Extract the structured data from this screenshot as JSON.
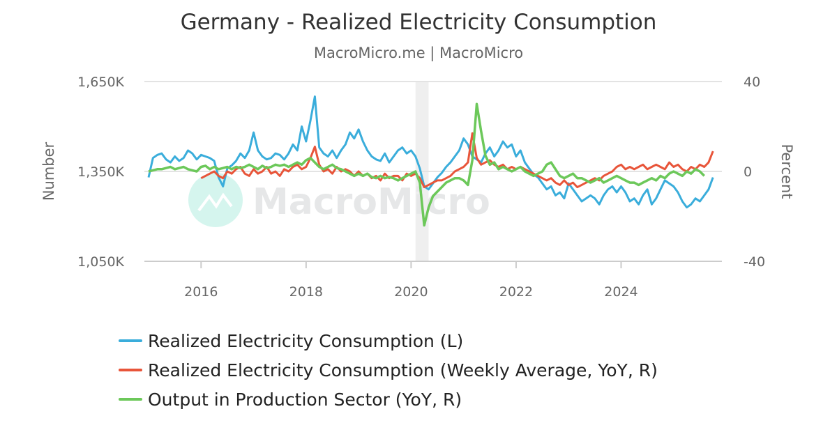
{
  "chart_data": {
    "type": "line",
    "title": "Germany - Realized Electricity Consumption",
    "subtitle": "MacroMicro.me | MacroMicro",
    "watermark": "MacroMicro",
    "ylabel_left": "Number",
    "ylabel_right": "Percent",
    "ylim_left": [
      1050,
      1650
    ],
    "ylim_right": [
      -40,
      40
    ],
    "yticks_left": [
      "1,650K",
      "1,350K",
      "1,050K"
    ],
    "yticks_right": [
      "40",
      "0",
      "-40"
    ],
    "xticks": [
      "2016",
      "2018",
      "2020",
      "2022",
      "2024"
    ],
    "xlim": [
      "2015-01",
      "2025-11"
    ],
    "grid": "horizontal",
    "legend_position": "bottom",
    "shaded_period": [
      "2020-02",
      "2020-04"
    ],
    "colors": {
      "blue": "#3aaddb",
      "red": "#e8553a",
      "green": "#6cc85a",
      "shade": "#efefef"
    },
    "series": [
      {
        "name": "Realized Electricity Consumption (L)",
        "axis": "left",
        "color": "#3aaddb",
        "unit": "K",
        "values": [
          1330,
          1395,
          1405,
          1410,
          1390,
          1380,
          1400,
          1385,
          1395,
          1420,
          1410,
          1390,
          1405,
          1400,
          1395,
          1385,
          1330,
          1300,
          1360,
          1370,
          1385,
          1410,
          1395,
          1420,
          1480,
          1420,
          1400,
          1390,
          1395,
          1410,
          1405,
          1390,
          1410,
          1440,
          1420,
          1500,
          1450,
          1520,
          1600,
          1430,
          1410,
          1400,
          1420,
          1395,
          1420,
          1440,
          1480,
          1460,
          1490,
          1450,
          1420,
          1400,
          1390,
          1385,
          1410,
          1380,
          1400,
          1420,
          1430,
          1410,
          1420,
          1400,
          1360,
          1300,
          1290,
          1310,
          1330,
          1345,
          1365,
          1380,
          1400,
          1420,
          1460,
          1440,
          1400,
          1390,
          1380,
          1410,
          1430,
          1400,
          1420,
          1450,
          1430,
          1440,
          1400,
          1420,
          1380,
          1360,
          1340,
          1330,
          1310,
          1290,
          1300,
          1270,
          1280,
          1260,
          1310,
          1290,
          1270,
          1250,
          1260,
          1270,
          1260,
          1240,
          1270,
          1290,
          1300,
          1280,
          1300,
          1280,
          1250,
          1260,
          1240,
          1270,
          1290,
          1240,
          1260,
          1290,
          1320,
          1310,
          1300,
          1280,
          1250,
          1230,
          1240,
          1260,
          1250,
          1270,
          1290,
          1330
        ]
      },
      {
        "name": "Realized Electricity Consumption (Weekly Average, YoY, R)",
        "axis": "right",
        "color": "#e8553a",
        "unit": "%",
        "values": [
          null,
          null,
          null,
          null,
          null,
          null,
          null,
          null,
          null,
          null,
          null,
          null,
          -3,
          -2,
          -1,
          0,
          -2,
          -3,
          0,
          -1,
          1,
          2,
          -1,
          -2,
          1,
          -1,
          0,
          2,
          -1,
          0,
          -2,
          1,
          0,
          2,
          3,
          1,
          2,
          6,
          11,
          3,
          0,
          1,
          -1,
          2,
          0,
          1,
          0,
          -2,
          0,
          -2,
          -1,
          -3,
          -2,
          -4,
          -1,
          -3,
          -2,
          -2,
          -4,
          -1,
          -2,
          -1,
          -3,
          -7,
          -6,
          -5,
          -4,
          -4,
          -3,
          -2,
          0,
          1,
          2,
          4,
          17,
          6,
          3,
          4,
          5,
          3,
          2,
          3,
          1,
          2,
          1,
          2,
          1,
          0,
          -1,
          -2,
          -3,
          -4,
          -3,
          -5,
          -6,
          -4,
          -6,
          -5,
          -7,
          -6,
          -5,
          -4,
          -3,
          -4,
          -2,
          -1,
          0,
          2,
          3,
          1,
          2,
          1,
          2,
          3,
          1,
          2,
          3,
          2,
          1,
          4,
          2,
          3,
          1,
          0,
          2,
          1,
          3,
          2,
          4,
          9
        ]
      },
      {
        "name": "Output in Production Sector (YoY, R)",
        "axis": "right",
        "color": "#6cc85a",
        "unit": "%",
        "values": [
          0,
          0.5,
          1,
          1,
          1.5,
          2,
          1,
          1.5,
          2,
          1,
          0.5,
          0,
          2,
          2.5,
          1,
          2,
          1,
          1.5,
          2,
          1,
          2,
          1.5,
          2,
          3,
          2,
          1,
          2.5,
          1.5,
          2,
          3,
          2.5,
          3,
          2,
          3,
          4,
          3,
          5,
          6,
          4,
          2,
          1,
          2,
          3,
          1.5,
          1,
          0,
          -1,
          -2,
          -1,
          -2,
          -1,
          -2.5,
          -3,
          -2,
          -3,
          -2.5,
          -3,
          -4,
          -3,
          -2,
          -1,
          0,
          -5,
          -24,
          -16,
          -11,
          -9,
          -7,
          -5,
          -4,
          -3,
          -3,
          -4,
          -6,
          5,
          30,
          18,
          7,
          3,
          4,
          1,
          2,
          1,
          0,
          1,
          2,
          0,
          -1,
          -2,
          -1,
          0,
          3,
          4,
          1,
          -2,
          -3,
          -2,
          -1,
          -3,
          -3,
          -4,
          -5,
          -4,
          -3,
          -5,
          -4,
          -3,
          -2,
          -3,
          -4,
          -5,
          -5,
          -6,
          -5,
          -4,
          -3,
          -4,
          -2,
          -3,
          -1,
          0,
          -1,
          -2,
          0,
          -1,
          1,
          0,
          -2,
          null,
          null
        ]
      }
    ],
    "x_start": "2015-01",
    "x_frequency": "monthly"
  }
}
